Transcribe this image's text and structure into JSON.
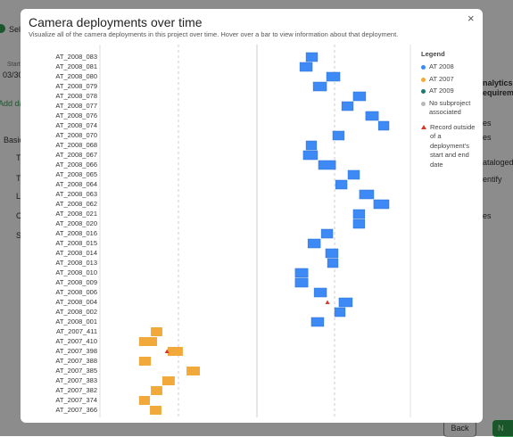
{
  "background": {
    "step": "Sele",
    "start_label": "Start",
    "start_date": "03/30",
    "add_link": "Add da",
    "tab": "Basic",
    "side_items": [
      "T",
      "T",
      "L",
      "C",
      "S"
    ],
    "right_heading": [
      "nalytics",
      "equirement"
    ],
    "right_items": [
      "es",
      "es",
      "ataloged",
      "entify",
      "es"
    ],
    "back_button": "Back",
    "next_button": "N"
  },
  "modal": {
    "title": "Camera deployments over time",
    "subtitle": "Visualize all of the camera deployments in this project over time. Hover over a bar to view information about that deployment.",
    "close": "×",
    "legend": {
      "title": "Legend",
      "items": [
        {
          "label": "AT 2008",
          "color": "#3d8af7"
        },
        {
          "label": "AT 2007",
          "color": "#f2a93b"
        },
        {
          "label": "AT 2009",
          "color": "#1f7a6e"
        },
        {
          "label": "No subproject associated",
          "color": "#b8b8b8"
        }
      ],
      "outlier": {
        "label": "Record outside of a deployment's start and end date",
        "color": "#d63a2a"
      }
    }
  },
  "chart_data": {
    "type": "gantt",
    "xlim": [
      0,
      100
    ],
    "categories": [
      "AT_2008_083",
      "AT_2008_081",
      "AT_2008_080",
      "AT_2008_079",
      "AT_2008_078",
      "AT_2008_077",
      "AT_2008_076",
      "AT_2008_074",
      "AT_2008_070",
      "AT_2008_068",
      "AT_2008_067",
      "AT_2008_066",
      "AT_2008_065",
      "AT_2008_064",
      "AT_2008_063",
      "AT_2008_062",
      "AT_2008_021",
      "AT_2008_020",
      "AT_2008_016",
      "AT_2008_015",
      "AT_2008_014",
      "AT_2008_013",
      "AT_2008_010",
      "AT_2008_009",
      "AT_2008_006",
      "AT_2008_004",
      "AT_2008_002",
      "AT_2008_001",
      "AT_2007_411",
      "AT_2007_410",
      "AT_2007_398",
      "AT_2007_388",
      "AT_2007_385",
      "AT_2007_383",
      "AT_2007_382",
      "AT_2007_374",
      "AT_2007_366"
    ],
    "series": [
      {
        "name": "AT 2008",
        "color": "#3d8af7",
        "start": [
          66.4,
          64.4,
          73,
          68.7,
          81.6,
          77.9,
          85.6,
          89.7,
          75,
          66.4,
          65.5,
          70.4,
          79.9,
          75.9,
          83.6,
          88.2,
          81.6,
          81.6,
          71.3,
          67,
          72.7,
          73.3,
          62.9,
          62.9,
          69,
          77,
          75.6,
          68.1,
          null,
          null,
          null,
          null,
          null,
          null,
          null,
          null,
          null
        ],
        "end": [
          70.1,
          68.4,
          77.3,
          73,
          85.6,
          81.6,
          89.7,
          93.1,
          78.7,
          69.8,
          70.1,
          75.9,
          83.6,
          79.6,
          88.2,
          93.1,
          85.3,
          85.3,
          75,
          71,
          76.7,
          76.7,
          67,
          67,
          73,
          81.3,
          79,
          72.1,
          null,
          null,
          null,
          null,
          null,
          null,
          null,
          null,
          null
        ]
      },
      {
        "name": "AT 2007",
        "color": "#f2a93b",
        "start": [
          null,
          null,
          null,
          null,
          null,
          null,
          null,
          null,
          null,
          null,
          null,
          null,
          null,
          null,
          null,
          null,
          null,
          null,
          null,
          null,
          null,
          null,
          null,
          null,
          null,
          null,
          null,
          null,
          16.4,
          12.6,
          21.8,
          12.6,
          27.9,
          20.1,
          16.4,
          12.6,
          16.1
        ],
        "end": [
          null,
          null,
          null,
          null,
          null,
          null,
          null,
          null,
          null,
          null,
          null,
          null,
          null,
          null,
          null,
          null,
          null,
          null,
          null,
          null,
          null,
          null,
          null,
          null,
          null,
          null,
          null,
          null,
          20.1,
          18.4,
          26.7,
          16.4,
          32.2,
          24.1,
          20.1,
          16.1,
          19.8
        ]
      }
    ],
    "outliers": [
      null,
      null,
      null,
      null,
      null,
      null,
      null,
      null,
      null,
      null,
      null,
      null,
      null,
      null,
      null,
      null,
      null,
      null,
      null,
      null,
      null,
      null,
      null,
      null,
      null,
      73.3,
      null,
      null,
      null,
      null,
      21.6,
      null,
      null,
      null,
      null,
      null,
      null
    ],
    "outlier_color": "#d63a2a"
  }
}
